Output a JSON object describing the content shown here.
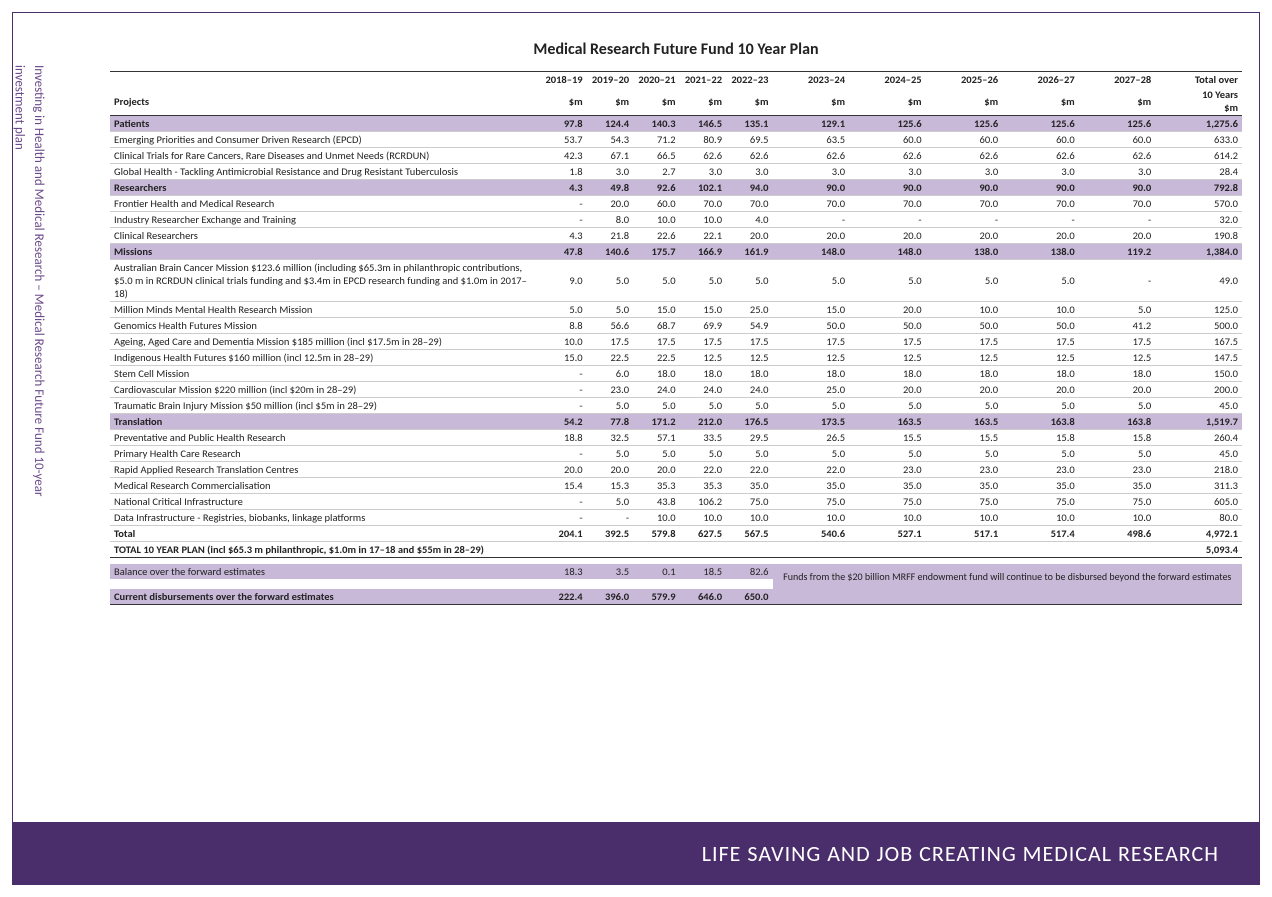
{
  "side_label": "Investing in Health and Medical Research – Medical Research Future Fund 10-year\ninvestment plan",
  "title": "Medical Research Future Fund 10 Year Plan",
  "footer": "LIFE SAVING AND JOB CREATING MEDICAL RESEARCH",
  "years": [
    "2018–19",
    "2019–20",
    "2020–21",
    "2021–22",
    "2022–23",
    "2023–24",
    "2024–25",
    "2025–26",
    "2026–27",
    "2027–28"
  ],
  "unit": "$m",
  "total_header_top": "Total over",
  "total_header_bot": "10 Years",
  "projects_label": "Projects",
  "note": "Funds from the $20 billion MRFF endowment fund will continue to be disbursed beyond the forward estimates",
  "sections": [
    {
      "label": "Patients",
      "vals": [
        "97.8",
        "124.4",
        "140.3",
        "146.5",
        "135.1",
        "129.1",
        "125.6",
        "125.6",
        "125.6",
        "125.6",
        "1,275.6"
      ],
      "rows": [
        {
          "label": "Emerging Priorities and Consumer Driven Research (EPCD)",
          "vals": [
            "53.7",
            "54.3",
            "71.2",
            "80.9",
            "69.5",
            "63.5",
            "60.0",
            "60.0",
            "60.0",
            "60.0",
            "633.0"
          ]
        },
        {
          "label": "Clinical Trials for Rare Cancers, Rare Diseases and Unmet Needs (RCRDUN)",
          "vals": [
            "42.3",
            "67.1",
            "66.5",
            "62.6",
            "62.6",
            "62.6",
            "62.6",
            "62.6",
            "62.6",
            "62.6",
            "614.2"
          ]
        },
        {
          "label": "Global Health - Tackling Antimicrobial Resistance and Drug Resistant Tuberculosis",
          "vals": [
            "1.8",
            "3.0",
            "2.7",
            "3.0",
            "3.0",
            "3.0",
            "3.0",
            "3.0",
            "3.0",
            "3.0",
            "28.4"
          ]
        }
      ]
    },
    {
      "label": "Researchers",
      "vals": [
        "4.3",
        "49.8",
        "92.6",
        "102.1",
        "94.0",
        "90.0",
        "90.0",
        "90.0",
        "90.0",
        "90.0",
        "792.8"
      ],
      "rows": [
        {
          "label": "Frontier Health and Medical Research",
          "vals": [
            "-",
            "20.0",
            "60.0",
            "70.0",
            "70.0",
            "70.0",
            "70.0",
            "70.0",
            "70.0",
            "70.0",
            "570.0"
          ]
        },
        {
          "label": "Industry Researcher Exchange and Training",
          "vals": [
            "-",
            "8.0",
            "10.0",
            "10.0",
            "4.0",
            "-",
            "-",
            "-",
            "-",
            "-",
            "32.0"
          ]
        },
        {
          "label": "Clinical Researchers",
          "vals": [
            "4.3",
            "21.8",
            "22.6",
            "22.1",
            "20.0",
            "20.0",
            "20.0",
            "20.0",
            "20.0",
            "20.0",
            "190.8"
          ]
        }
      ]
    },
    {
      "label": "Missions",
      "vals": [
        "47.8",
        "140.6",
        "175.7",
        "166.9",
        "161.9",
        "148.0",
        "148.0",
        "138.0",
        "138.0",
        "119.2",
        "1,384.0"
      ],
      "rows": [
        {
          "label": "Australian Brain Cancer Mission $123.6 million (including $65.3m in philanthropic contributions, $5.0 m in RCRDUN clinical trials funding and $3.4m in EPCD research funding and $1.0m in 2017–18)",
          "multiline": true,
          "vals": [
            "9.0",
            "5.0",
            "5.0",
            "5.0",
            "5.0",
            "5.0",
            "5.0",
            "5.0",
            "5.0",
            "-",
            "49.0"
          ]
        },
        {
          "label": "Million Minds Mental Health Research Mission",
          "vals": [
            "5.0",
            "5.0",
            "15.0",
            "15.0",
            "25.0",
            "15.0",
            "20.0",
            "10.0",
            "10.0",
            "5.0",
            "125.0"
          ]
        },
        {
          "label": "Genomics Health Futures Mission",
          "vals": [
            "8.8",
            "56.6",
            "68.7",
            "69.9",
            "54.9",
            "50.0",
            "50.0",
            "50.0",
            "50.0",
            "41.2",
            "500.0"
          ]
        },
        {
          "label": "Ageing, Aged Care and Dementia Mission $185 million (incl $17.5m in 28–29)",
          "vals": [
            "10.0",
            "17.5",
            "17.5",
            "17.5",
            "17.5",
            "17.5",
            "17.5",
            "17.5",
            "17.5",
            "17.5",
            "167.5"
          ]
        },
        {
          "label": "Indigenous Health Futures $160 million (incl 12.5m in 28–29)",
          "vals": [
            "15.0",
            "22.5",
            "22.5",
            "12.5",
            "12.5",
            "12.5",
            "12.5",
            "12.5",
            "12.5",
            "12.5",
            "147.5"
          ]
        },
        {
          "label": "Stem Cell Mission",
          "vals": [
            "-",
            "6.0",
            "18.0",
            "18.0",
            "18.0",
            "18.0",
            "18.0",
            "18.0",
            "18.0",
            "18.0",
            "150.0"
          ]
        },
        {
          "label": "Cardiovascular Mission $220 million (incl $20m in 28–29)",
          "vals": [
            "-",
            "23.0",
            "24.0",
            "24.0",
            "24.0",
            "25.0",
            "20.0",
            "20.0",
            "20.0",
            "20.0",
            "200.0"
          ]
        },
        {
          "label": "Traumatic Brain Injury Mission $50 million (incl $5m in 28–29)",
          "vals": [
            "-",
            "5.0",
            "5.0",
            "5.0",
            "5.0",
            "5.0",
            "5.0",
            "5.0",
            "5.0",
            "5.0",
            "45.0"
          ]
        }
      ]
    },
    {
      "label": "Translation",
      "vals": [
        "54.2",
        "77.8",
        "171.2",
        "212.0",
        "176.5",
        "173.5",
        "163.5",
        "163.5",
        "163.8",
        "163.8",
        "1,519.7"
      ],
      "rows": [
        {
          "label": "Preventative and Public Health Research",
          "vals": [
            "18.8",
            "32.5",
            "57.1",
            "33.5",
            "29.5",
            "26.5",
            "15.5",
            "15.5",
            "15.8",
            "15.8",
            "260.4"
          ]
        },
        {
          "label": "Primary Health Care Research",
          "vals": [
            "-",
            "5.0",
            "5.0",
            "5.0",
            "5.0",
            "5.0",
            "5.0",
            "5.0",
            "5.0",
            "5.0",
            "45.0"
          ]
        },
        {
          "label": "Rapid Applied Research Translation Centres",
          "vals": [
            "20.0",
            "20.0",
            "20.0",
            "22.0",
            "22.0",
            "22.0",
            "23.0",
            "23.0",
            "23.0",
            "23.0",
            "218.0"
          ]
        },
        {
          "label": "Medical Research Commercialisation",
          "vals": [
            "15.4",
            "15.3",
            "35.3",
            "35.3",
            "35.0",
            "35.0",
            "35.0",
            "35.0",
            "35.0",
            "35.0",
            "311.3"
          ]
        },
        {
          "label": "National Critical Infrastructure",
          "vals": [
            "-",
            "5.0",
            "43.8",
            "106.2",
            "75.0",
            "75.0",
            "75.0",
            "75.0",
            "75.0",
            "75.0",
            "605.0"
          ]
        },
        {
          "label": "Data Infrastructure - Registries, biobanks, linkage platforms",
          "vals": [
            "-",
            "-",
            "10.0",
            "10.0",
            "10.0",
            "10.0",
            "10.0",
            "10.0",
            "10.0",
            "10.0",
            "80.0"
          ]
        }
      ]
    }
  ],
  "total": {
    "label": "Total",
    "vals": [
      "204.1",
      "392.5",
      "579.8",
      "627.5",
      "567.5",
      "540.6",
      "527.1",
      "517.1",
      "517.4",
      "498.6",
      "4,972.1"
    ]
  },
  "plan_total": {
    "label": "TOTAL 10 YEAR PLAN (incl $65.3 m philanthropic, $1.0m in 17–18 and $55m in 28–29)",
    "val": "5,093.4"
  },
  "balance": {
    "label": "Balance over the forward estimates",
    "vals": [
      "18.3",
      "3.5",
      "0.1",
      "18.5",
      "82.6"
    ]
  },
  "disbursements": {
    "label": "Current disbursements over the forward estimates",
    "vals": [
      "222.4",
      "396.0",
      "579.9",
      "646.0",
      "650.0"
    ]
  },
  "colors": {
    "section_bg": "#c9b9d9",
    "border": "#4a2d6b",
    "footer_bg": "#4a2d6b",
    "side_text": "#6b4a8a",
    "grid": "#cccccc"
  }
}
